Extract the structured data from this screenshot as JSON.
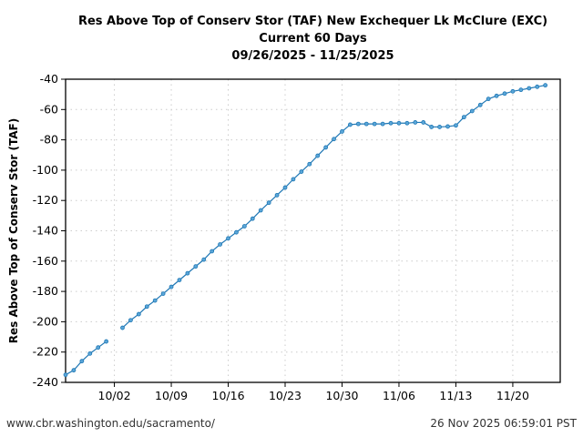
{
  "chart_data": {
    "type": "line",
    "title": [
      "Res Above Top of Conserv Stor (TAF) New Exchequer Lk McClure (EXC)",
      "Current 60 Days",
      "09/26/2025 - 11/25/2025"
    ],
    "ylabel": "Res Above Top of Conserv Stor (TAF)",
    "xlabel": "",
    "ylim": [
      -240,
      -40
    ],
    "yticks": [
      -40,
      -60,
      -80,
      -100,
      -120,
      -140,
      -160,
      -180,
      -200,
      -220,
      -240
    ],
    "xlim": [
      "2025-09-26",
      "2025-11-25T20:00"
    ],
    "xticks": [
      {
        "date": "2025-10-02",
        "label": "10/02"
      },
      {
        "date": "2025-10-09",
        "label": "10/09"
      },
      {
        "date": "2025-10-16",
        "label": "10/16"
      },
      {
        "date": "2025-10-23",
        "label": "10/23"
      },
      {
        "date": "2025-10-30",
        "label": "10/30"
      },
      {
        "date": "2025-11-06",
        "label": "11/06"
      },
      {
        "date": "2025-11-13",
        "label": "11/13"
      },
      {
        "date": "2025-11-20",
        "label": "11/20"
      }
    ],
    "grid": true,
    "color": "#1f77b4",
    "start_date": "2025-09-26",
    "values": [
      -235,
      -232,
      -226,
      -221,
      -217,
      -213,
      null,
      -204,
      -199,
      -195,
      -190,
      -186,
      -181.5,
      -177,
      -172.5,
      -168,
      -163.5,
      -159,
      -153.5,
      -149,
      -145,
      -141,
      -137,
      -132,
      -126.5,
      -121.5,
      -116.5,
      -111.5,
      -106,
      -101,
      -96,
      -90.5,
      -85,
      -79.5,
      -74.5,
      -70,
      -69.5,
      -69.5,
      -69.5,
      -69.5,
      -69,
      -69,
      -69,
      -68.5,
      -68.5,
      -71.5,
      -71.5,
      -71.2,
      -70.5,
      -65,
      -61,
      -57,
      -53,
      -51,
      -49.5,
      -48,
      -47,
      -46,
      -45,
      -44
    ]
  },
  "footer": {
    "left": "www.cbr.washington.edu/sacramento/",
    "right": "26 Nov 2025 06:59:01 PST"
  }
}
